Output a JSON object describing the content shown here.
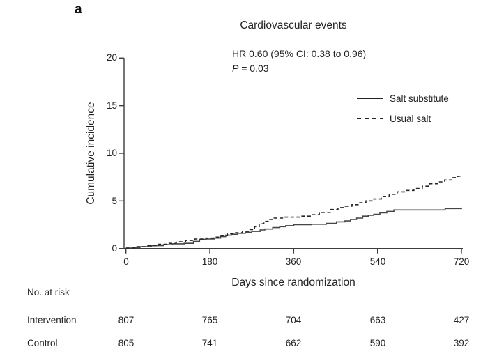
{
  "panel_label": "a",
  "chart_data": {
    "type": "line",
    "subtype": "kaplan-meier-step",
    "title": "Cardiovascular events",
    "annotation": {
      "hr_text": "HR 0.60 (95% CI: 0.38 to 0.96)",
      "p_italic": "P",
      "p_rest": " = 0.03"
    },
    "xlabel": "Days since randomization",
    "ylabel": "Cumulative incidence",
    "xlim": [
      0,
      720
    ],
    "ylim": [
      0,
      20
    ],
    "x_ticks": [
      "0",
      "180",
      "360",
      "540",
      "720"
    ],
    "y_ticks": [
      "0",
      "5",
      "10",
      "15",
      "20"
    ],
    "grid": false,
    "legend_position": "upper-right",
    "legend": [
      {
        "name": "Salt substitute",
        "style": "solid"
      },
      {
        "name": "Usual salt",
        "style": "dashed"
      }
    ],
    "series": [
      {
        "name": "Salt substitute",
        "style": "solid",
        "points": [
          [
            0,
            0.05
          ],
          [
            15,
            0.1
          ],
          [
            30,
            0.2
          ],
          [
            55,
            0.3
          ],
          [
            80,
            0.4
          ],
          [
            100,
            0.5
          ],
          [
            125,
            0.55
          ],
          [
            145,
            0.75
          ],
          [
            158,
            0.95
          ],
          [
            172,
            1.0
          ],
          [
            190,
            1.1
          ],
          [
            203,
            1.25
          ],
          [
            214,
            1.4
          ],
          [
            226,
            1.5
          ],
          [
            240,
            1.6
          ],
          [
            256,
            1.7
          ],
          [
            270,
            1.8
          ],
          [
            288,
            1.95
          ],
          [
            298,
            2.05
          ],
          [
            315,
            2.2
          ],
          [
            330,
            2.3
          ],
          [
            343,
            2.4
          ],
          [
            360,
            2.5
          ],
          [
            398,
            2.55
          ],
          [
            430,
            2.65
          ],
          [
            452,
            2.8
          ],
          [
            470,
            2.9
          ],
          [
            482,
            3.05
          ],
          [
            495,
            3.2
          ],
          [
            508,
            3.4
          ],
          [
            520,
            3.5
          ],
          [
            532,
            3.6
          ],
          [
            545,
            3.75
          ],
          [
            560,
            3.9
          ],
          [
            575,
            4.05
          ],
          [
            685,
            4.2
          ],
          [
            720,
            4.3
          ]
        ]
      },
      {
        "name": "Usual salt",
        "style": "dashed",
        "points": [
          [
            0,
            0.05
          ],
          [
            22,
            0.2
          ],
          [
            45,
            0.3
          ],
          [
            68,
            0.45
          ],
          [
            88,
            0.55
          ],
          [
            108,
            0.7
          ],
          [
            128,
            0.85
          ],
          [
            148,
            1.0
          ],
          [
            168,
            1.1
          ],
          [
            188,
            1.2
          ],
          [
            204,
            1.35
          ],
          [
            218,
            1.55
          ],
          [
            234,
            1.65
          ],
          [
            250,
            1.8
          ],
          [
            266,
            2.0
          ],
          [
            276,
            2.3
          ],
          [
            286,
            2.6
          ],
          [
            296,
            2.85
          ],
          [
            306,
            3.05
          ],
          [
            318,
            3.2
          ],
          [
            340,
            3.3
          ],
          [
            375,
            3.4
          ],
          [
            400,
            3.55
          ],
          [
            415,
            3.8
          ],
          [
            440,
            4.1
          ],
          [
            455,
            4.3
          ],
          [
            470,
            4.45
          ],
          [
            485,
            4.6
          ],
          [
            500,
            4.8
          ],
          [
            515,
            5.0
          ],
          [
            530,
            5.2
          ],
          [
            548,
            5.45
          ],
          [
            565,
            5.7
          ],
          [
            582,
            5.95
          ],
          [
            600,
            6.1
          ],
          [
            618,
            6.3
          ],
          [
            636,
            6.55
          ],
          [
            652,
            6.8
          ],
          [
            668,
            7.0
          ],
          [
            684,
            7.2
          ],
          [
            700,
            7.45
          ],
          [
            712,
            7.6
          ],
          [
            720,
            7.7
          ]
        ]
      }
    ]
  },
  "risk_table": {
    "header": "No. at risk",
    "rows": [
      {
        "label": "Intervention",
        "values": [
          "807",
          "765",
          "704",
          "663",
          "427"
        ]
      },
      {
        "label": "Control",
        "values": [
          "805",
          "741",
          "662",
          "590",
          "392"
        ]
      }
    ]
  },
  "colors": {
    "solid_line": "#454545",
    "dashed_line": "#252525",
    "axis": "#3c3c3c",
    "text": "#222222",
    "background": "#ffffff"
  }
}
